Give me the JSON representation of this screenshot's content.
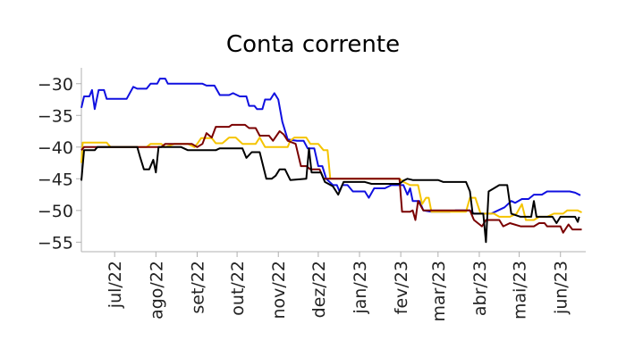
{
  "chart_data": {
    "type": "line",
    "title": "Conta corrente",
    "xlabel": "",
    "ylabel": "",
    "x_range": [
      "2022-06-06",
      "2023-06-20"
    ],
    "ylim": [
      -56.5,
      -27.5
    ],
    "y_ticks": [
      -30,
      -35,
      -40,
      -45,
      -50,
      -55
    ],
    "y_tick_labels": [
      "−30",
      "−35",
      "−40",
      "−45",
      "−50",
      "−55"
    ],
    "x_ticks": [
      "2022-07-01",
      "2022-08-01",
      "2022-09-01",
      "2022-10-01",
      "2022-11-01",
      "2022-12-01",
      "2023-01-01",
      "2023-02-01",
      "2023-03-01",
      "2023-04-01",
      "2023-05-01",
      "2023-06-01"
    ],
    "x_tick_labels": [
      "jul/22",
      "ago/22",
      "set/22",
      "out/22",
      "nov/22",
      "dez/22",
      "jan/23",
      "fev/23",
      "mar/23",
      "abr/23",
      "mai/23",
      "jun/23"
    ],
    "grid": false,
    "legend": "none",
    "series": [
      {
        "color": "#1010e0",
        "points": [
          [
            "2022-06-06",
            -33.8
          ],
          [
            "2022-06-08",
            -32
          ],
          [
            "2022-06-12",
            -32
          ],
          [
            "2022-06-14",
            -31
          ],
          [
            "2022-06-16",
            -34
          ],
          [
            "2022-06-19",
            -31
          ],
          [
            "2022-06-23",
            -31
          ],
          [
            "2022-06-25",
            -32.4
          ],
          [
            "2022-07-10",
            -32.4
          ],
          [
            "2022-07-15",
            -30.5
          ],
          [
            "2022-07-18",
            -30.8
          ],
          [
            "2022-07-25",
            -30.8
          ],
          [
            "2022-07-28",
            -30
          ],
          [
            "2022-08-02",
            -30
          ],
          [
            "2022-08-04",
            -29.2
          ],
          [
            "2022-08-08",
            -29.2
          ],
          [
            "2022-08-10",
            -30
          ],
          [
            "2022-09-05",
            -30
          ],
          [
            "2022-09-08",
            -30.3
          ],
          [
            "2022-09-14",
            -30.3
          ],
          [
            "2022-09-18",
            -31.8
          ],
          [
            "2022-09-25",
            -31.8
          ],
          [
            "2022-09-28",
            -31.5
          ],
          [
            "2022-10-03",
            -32
          ],
          [
            "2022-10-08",
            -32
          ],
          [
            "2022-10-10",
            -33.5
          ],
          [
            "2022-10-14",
            -33.5
          ],
          [
            "2022-10-16",
            -34
          ],
          [
            "2022-10-20",
            -34
          ],
          [
            "2022-10-22",
            -32.5
          ],
          [
            "2022-10-26",
            -32.5
          ],
          [
            "2022-10-29",
            -31.5
          ],
          [
            "2022-11-01",
            -32.5
          ],
          [
            "2022-11-04",
            -36
          ],
          [
            "2022-11-08",
            -38.8
          ],
          [
            "2022-11-15",
            -39
          ],
          [
            "2022-11-20",
            -39
          ],
          [
            "2022-11-23",
            -40.2
          ],
          [
            "2022-11-28",
            -40.2
          ],
          [
            "2022-12-01",
            -43
          ],
          [
            "2022-12-04",
            -43
          ],
          [
            "2022-12-07",
            -45
          ],
          [
            "2022-12-12",
            -46
          ],
          [
            "2022-12-15",
            -46
          ],
          [
            "2022-12-17",
            -47
          ],
          [
            "2022-12-19",
            -46
          ],
          [
            "2022-12-23",
            -46
          ],
          [
            "2022-12-27",
            -47
          ],
          [
            "2023-01-05",
            -47
          ],
          [
            "2023-01-08",
            -48
          ],
          [
            "2023-01-12",
            -46.5
          ],
          [
            "2023-01-20",
            -46.5
          ],
          [
            "2023-01-25",
            -46
          ],
          [
            "2023-02-03",
            -46
          ],
          [
            "2023-02-06",
            -47.5
          ],
          [
            "2023-02-08",
            -46.5
          ],
          [
            "2023-02-10",
            -48.5
          ],
          [
            "2023-02-15",
            -48.5
          ],
          [
            "2023-02-18",
            -50
          ],
          [
            "2023-02-24",
            -50.2
          ],
          [
            "2023-03-10",
            -50.2
          ],
          [
            "2023-03-14",
            -50
          ],
          [
            "2023-03-25",
            -50
          ],
          [
            "2023-03-28",
            -50.5
          ],
          [
            "2023-04-10",
            -50.5
          ],
          [
            "2023-04-15",
            -50
          ],
          [
            "2023-04-20",
            -49.5
          ],
          [
            "2023-04-25",
            -48.5
          ],
          [
            "2023-04-28",
            -48.8
          ],
          [
            "2023-05-03",
            -48.2
          ],
          [
            "2023-05-08",
            -48.2
          ],
          [
            "2023-05-12",
            -47.5
          ],
          [
            "2023-05-18",
            -47.5
          ],
          [
            "2023-05-22",
            -47
          ],
          [
            "2023-06-08",
            -47
          ],
          [
            "2023-06-12",
            -47.2
          ],
          [
            "2023-06-16",
            -47.6
          ]
        ]
      },
      {
        "color": "#f5c400",
        "points": [
          [
            "2022-06-06",
            -42.5
          ],
          [
            "2022-06-07",
            -39.3
          ],
          [
            "2022-06-25",
            -39.3
          ],
          [
            "2022-06-28",
            -40
          ],
          [
            "2022-07-25",
            -40
          ],
          [
            "2022-07-28",
            -39.5
          ],
          [
            "2022-08-05",
            -39.5
          ],
          [
            "2022-08-08",
            -40
          ],
          [
            "2022-08-15",
            -39.5
          ],
          [
            "2022-08-25",
            -39.5
          ],
          [
            "2022-08-30",
            -40
          ],
          [
            "2022-09-01",
            -39.5
          ],
          [
            "2022-09-04",
            -38.6
          ],
          [
            "2022-09-12",
            -38.6
          ],
          [
            "2022-09-15",
            -39.4
          ],
          [
            "2022-09-20",
            -39.4
          ],
          [
            "2022-09-25",
            -38.5
          ],
          [
            "2022-09-30",
            -38.5
          ],
          [
            "2022-10-05",
            -39.5
          ],
          [
            "2022-10-15",
            -39.5
          ],
          [
            "2022-10-18",
            -38.5
          ],
          [
            "2022-10-22",
            -40
          ],
          [
            "2022-11-08",
            -40
          ],
          [
            "2022-11-10",
            -39
          ],
          [
            "2022-11-13",
            -38.5
          ],
          [
            "2022-11-22",
            -38.5
          ],
          [
            "2022-11-25",
            -39.5
          ],
          [
            "2022-12-01",
            -39.5
          ],
          [
            "2022-12-05",
            -40.5
          ],
          [
            "2022-12-08",
            -40.5
          ],
          [
            "2022-12-10",
            -45
          ],
          [
            "2023-01-31",
            -45
          ],
          [
            "2023-02-03",
            -45.5
          ],
          [
            "2023-02-08",
            -46
          ],
          [
            "2023-02-14",
            -46
          ],
          [
            "2023-02-17",
            -49
          ],
          [
            "2023-02-20",
            -48
          ],
          [
            "2023-02-22",
            -48
          ],
          [
            "2023-02-24",
            -50.2
          ],
          [
            "2023-03-22",
            -50.2
          ],
          [
            "2023-03-25",
            -48
          ],
          [
            "2023-03-29",
            -48
          ],
          [
            "2023-04-02",
            -50.5
          ],
          [
            "2023-04-12",
            -50.5
          ],
          [
            "2023-04-16",
            -51
          ],
          [
            "2023-04-24",
            -51
          ],
          [
            "2023-04-29",
            -50.5
          ],
          [
            "2023-05-03",
            -49
          ],
          [
            "2023-05-06",
            -51.5
          ],
          [
            "2023-05-12",
            -51.5
          ],
          [
            "2023-05-16",
            -51
          ],
          [
            "2023-05-22",
            -51
          ],
          [
            "2023-05-27",
            -50.5
          ],
          [
            "2023-06-03",
            -50.5
          ],
          [
            "2023-06-06",
            -50
          ],
          [
            "2023-06-14",
            -50
          ],
          [
            "2023-06-17",
            -50.3
          ]
        ]
      },
      {
        "color": "#7a0000",
        "points": [
          [
            "2022-06-06",
            -40.5
          ],
          [
            "2022-06-08",
            -40
          ],
          [
            "2022-08-05",
            -40
          ],
          [
            "2022-08-08",
            -39.5
          ],
          [
            "2022-08-28",
            -39.5
          ],
          [
            "2022-09-01",
            -40
          ],
          [
            "2022-09-05",
            -39.5
          ],
          [
            "2022-09-08",
            -37.8
          ],
          [
            "2022-09-12",
            -38.5
          ],
          [
            "2022-09-15",
            -36.8
          ],
          [
            "2022-09-25",
            -36.8
          ],
          [
            "2022-09-27",
            -36.5
          ],
          [
            "2022-10-07",
            -36.5
          ],
          [
            "2022-10-10",
            -37
          ],
          [
            "2022-10-15",
            -37
          ],
          [
            "2022-10-18",
            -38.2
          ],
          [
            "2022-10-25",
            -38.2
          ],
          [
            "2022-10-28",
            -39
          ],
          [
            "2022-11-02",
            -37.5
          ],
          [
            "2022-11-05",
            -38
          ],
          [
            "2022-11-08",
            -39
          ],
          [
            "2022-11-14",
            -39.5
          ],
          [
            "2022-11-18",
            -43
          ],
          [
            "2022-11-22",
            -43
          ],
          [
            "2022-11-25",
            -43.5
          ],
          [
            "2022-12-02",
            -43.5
          ],
          [
            "2022-12-05",
            -45
          ],
          [
            "2023-01-31",
            -45
          ],
          [
            "2023-02-02",
            -50.2
          ],
          [
            "2023-02-08",
            -50.2
          ],
          [
            "2023-02-10",
            -50
          ],
          [
            "2023-02-12",
            -51.5
          ],
          [
            "2023-02-14",
            -48.5
          ],
          [
            "2023-02-18",
            -50
          ],
          [
            "2023-03-25",
            -50
          ],
          [
            "2023-03-28",
            -51.5
          ],
          [
            "2023-04-03",
            -52.5
          ],
          [
            "2023-04-06",
            -51.5
          ],
          [
            "2023-04-16",
            -51.5
          ],
          [
            "2023-04-19",
            -52.5
          ],
          [
            "2023-04-24",
            -52
          ],
          [
            "2023-05-02",
            -52.5
          ],
          [
            "2023-05-12",
            -52.5
          ],
          [
            "2023-05-16",
            -52
          ],
          [
            "2023-05-20",
            -52
          ],
          [
            "2023-05-22",
            -52.5
          ],
          [
            "2023-06-01",
            -52.5
          ],
          [
            "2023-06-03",
            -53.5
          ],
          [
            "2023-06-07",
            -52.2
          ],
          [
            "2023-06-10",
            -53
          ],
          [
            "2023-06-17",
            -53
          ]
        ]
      },
      {
        "color": "#000000",
        "points": [
          [
            "2022-06-06",
            -45.3
          ],
          [
            "2022-06-08",
            -40.5
          ],
          [
            "2022-06-16",
            -40.5
          ],
          [
            "2022-06-18",
            -40
          ],
          [
            "2022-07-18",
            -40
          ],
          [
            "2022-07-20",
            -41.5
          ],
          [
            "2022-07-23",
            -43.5
          ],
          [
            "2022-07-27",
            -43.5
          ],
          [
            "2022-07-30",
            -42
          ],
          [
            "2022-08-01",
            -44
          ],
          [
            "2022-08-03",
            -40
          ],
          [
            "2022-08-20",
            -40
          ],
          [
            "2022-08-25",
            -40.5
          ],
          [
            "2022-09-15",
            -40.5
          ],
          [
            "2022-09-18",
            -40.2
          ],
          [
            "2022-10-05",
            -40.2
          ],
          [
            "2022-10-08",
            -41.7
          ],
          [
            "2022-10-12",
            -40.8
          ],
          [
            "2022-10-18",
            -40.8
          ],
          [
            "2022-10-23",
            -45
          ],
          [
            "2022-10-27",
            -45
          ],
          [
            "2022-10-30",
            -44.5
          ],
          [
            "2022-11-02",
            -43.5
          ],
          [
            "2022-11-06",
            -43.5
          ],
          [
            "2022-11-10",
            -45.2
          ],
          [
            "2022-11-22",
            -45
          ],
          [
            "2022-11-24",
            -40.2
          ],
          [
            "2022-11-26",
            -44
          ],
          [
            "2022-12-03",
            -44
          ],
          [
            "2022-12-06",
            -45.5
          ],
          [
            "2022-12-12",
            -46.2
          ],
          [
            "2022-12-16",
            -47.5
          ],
          [
            "2022-12-20",
            -45.5
          ],
          [
            "2022-12-25",
            -45.5
          ],
          [
            "2023-01-05",
            -45.5
          ],
          [
            "2023-01-10",
            -45.8
          ],
          [
            "2023-01-31",
            -45.8
          ],
          [
            "2023-02-03",
            -45.3
          ],
          [
            "2023-02-06",
            -45
          ],
          [
            "2023-02-10",
            -45.2
          ],
          [
            "2023-03-01",
            -45.2
          ],
          [
            "2023-03-05",
            -45.5
          ],
          [
            "2023-03-22",
            -45.5
          ],
          [
            "2023-03-25",
            -47
          ],
          [
            "2023-03-27",
            -50.5
          ],
          [
            "2023-04-04",
            -50.5
          ],
          [
            "2023-04-06",
            -55
          ],
          [
            "2023-04-08",
            -47
          ],
          [
            "2023-04-12",
            -46.5
          ],
          [
            "2023-04-16",
            -46
          ],
          [
            "2023-04-22",
            -46
          ],
          [
            "2023-04-25",
            -50.5
          ],
          [
            "2023-05-02",
            -51
          ],
          [
            "2023-05-10",
            -51
          ],
          [
            "2023-05-12",
            -48.5
          ],
          [
            "2023-05-14",
            -51
          ],
          [
            "2023-05-26",
            -51
          ],
          [
            "2023-05-29",
            -52
          ],
          [
            "2023-06-01",
            -51
          ],
          [
            "2023-06-12",
            -51
          ],
          [
            "2023-06-14",
            -51.8
          ],
          [
            "2023-06-15",
            -51
          ]
        ]
      }
    ]
  }
}
